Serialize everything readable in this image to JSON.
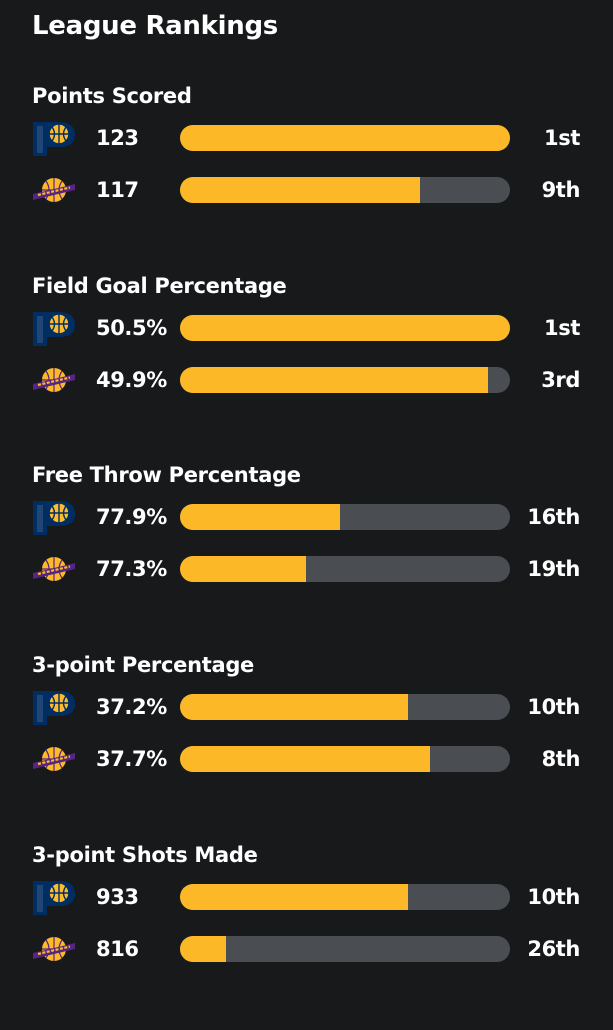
{
  "page": {
    "title": "League Rankings"
  },
  "colors": {
    "background": "#17191b",
    "bar_track": "#4a4d51",
    "bar_fill": "#fcb827",
    "text": "#ffffff"
  },
  "teams": [
    {
      "logo_icon": "indiana-pacers-logo-icon",
      "primary_color": "#002d62",
      "secondary_color": "#fdbb30"
    },
    {
      "logo_icon": "los-angeles-lakers-logo-icon",
      "primary_color": "#552583",
      "secondary_color": "#fdb927"
    }
  ],
  "sections": [
    {
      "title": "Points Scored",
      "rows": [
        {
          "value": "123",
          "rank": "1st",
          "fill_percent": 100
        },
        {
          "value": "117",
          "rank": "9th",
          "fill_percent": 72.7
        }
      ]
    },
    {
      "title": "Field Goal Percentage",
      "rows": [
        {
          "value": "50.5%",
          "rank": "1st",
          "fill_percent": 100
        },
        {
          "value": "49.9%",
          "rank": "3rd",
          "fill_percent": 93.3
        }
      ]
    },
    {
      "title": "Free Throw Percentage",
      "rows": [
        {
          "value": "77.9%",
          "rank": "16th",
          "fill_percent": 48.5
        },
        {
          "value": "77.3%",
          "rank": "19th",
          "fill_percent": 38.2
        }
      ]
    },
    {
      "title": "3-point Percentage",
      "rows": [
        {
          "value": "37.2%",
          "rank": "10th",
          "fill_percent": 69.1
        },
        {
          "value": "37.7%",
          "rank": "8th",
          "fill_percent": 75.8
        }
      ]
    },
    {
      "title": "3-point Shots Made",
      "rows": [
        {
          "value": "933",
          "rank": "10th",
          "fill_percent": 69.1
        },
        {
          "value": "816",
          "rank": "26th",
          "fill_percent": 13.9
        }
      ]
    }
  ]
}
